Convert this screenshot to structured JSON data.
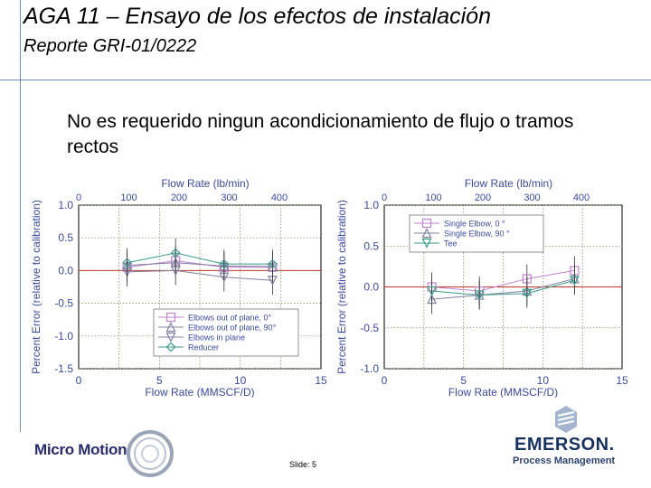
{
  "slide": {
    "title": "AGA 11 – Ensayo de los efectos de instalación",
    "subtitle": "Reporte GRI-01/0222",
    "body": "No es requerido ningun acondicionamiento de flujo o tramos rectos",
    "slide_number": "Slide: 5"
  },
  "logos": {
    "left": "Micro Motion",
    "right": "EMERSON.",
    "right_sub": "Process Management"
  },
  "colors": {
    "reference_line": "#c0392b",
    "grid_line": "#6a8b4e",
    "series_purple": "#c080d0",
    "series_gray": "#8080a0",
    "series_teal": "#3a9a8a"
  },
  "chart_data": [
    {
      "type": "scatter",
      "xlabel": "Flow Rate (MMSCF/D)",
      "x2label": "Flow Rate (lb/min)",
      "ylabel": "Percent Error (relative to calibration)",
      "xlim": [
        0,
        15
      ],
      "ylim": [
        -1.5,
        1.0
      ],
      "xticks": [
        "0",
        "5",
        "10",
        "15"
      ],
      "x2ticks": [
        "0",
        "100",
        "200",
        "300",
        "400"
      ],
      "yticks": [
        "1.0",
        "0.5",
        "0.0",
        "-0.5",
        "-1.0",
        "-1.5"
      ],
      "legend_position": "bottom-right",
      "series": [
        {
          "name": "Elbows out of plane, 0°",
          "x": [
            3,
            6,
            9,
            12
          ],
          "y": [
            0.05,
            0.15,
            0.05,
            0.05
          ]
        },
        {
          "name": "Elbows out of plane, 90°",
          "x": [
            3,
            6,
            9,
            12
          ],
          "y": [
            0.08,
            0.12,
            0.07,
            0.06
          ]
        },
        {
          "name": "Elbows in plane",
          "x": [
            3,
            6,
            9,
            12
          ],
          "y": [
            -0.02,
            0.0,
            -0.1,
            -0.15
          ]
        },
        {
          "name": "Reducer",
          "x": [
            3,
            6,
            9,
            12
          ],
          "y": [
            0.12,
            0.27,
            0.1,
            0.1
          ]
        }
      ]
    },
    {
      "type": "scatter",
      "xlabel": "Flow Rate (MMSCF/D)",
      "x2label": "Flow Rate (lb/min)",
      "ylabel": "Percent Error (relative to calibration)",
      "xlim": [
        0,
        15
      ],
      "ylim": [
        -1.0,
        1.0
      ],
      "xticks": [
        "0",
        "5",
        "10",
        "15"
      ],
      "x2ticks": [
        "0",
        "100",
        "200",
        "300",
        "400"
      ],
      "yticks": [
        "1.0",
        "0.5",
        "0.0",
        "-0.5",
        "-1.0"
      ],
      "legend_position": "top-right",
      "series": [
        {
          "name": "Single Elbow, 0 °",
          "x": [
            3,
            6,
            9,
            12
          ],
          "y": [
            0.0,
            -0.05,
            0.1,
            0.2
          ]
        },
        {
          "name": "Single Elbow, 90 °",
          "x": [
            3,
            6,
            9,
            12
          ],
          "y": [
            -0.15,
            -0.1,
            -0.05,
            0.1
          ]
        },
        {
          "name": "Tee",
          "x": [
            3,
            6,
            9,
            12
          ],
          "y": [
            -0.05,
            -0.1,
            -0.08,
            0.08
          ]
        }
      ]
    }
  ]
}
